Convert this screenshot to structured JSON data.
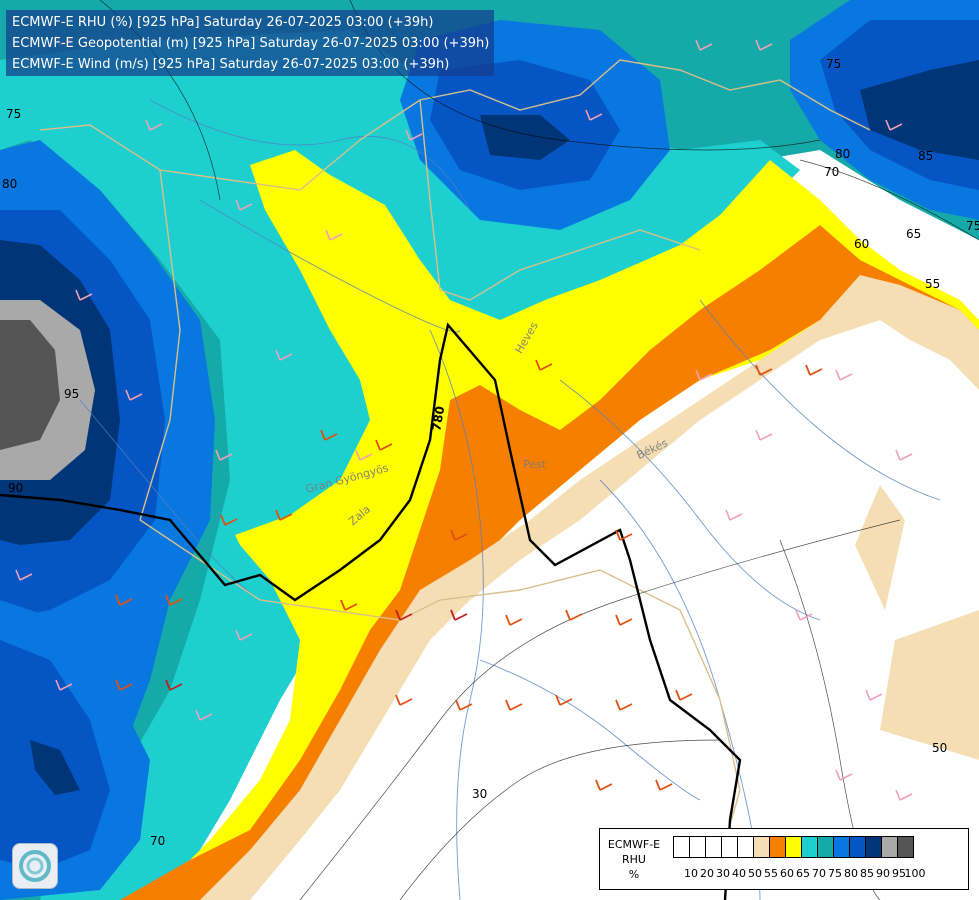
{
  "header": {
    "line1": "ECMWF-E RHU (%) [925 hPa] Saturday 26-07-2025 03:00 (+39h)",
    "line2": "ECMWF-E Geopotential (m) [925 hPa] Saturday 26-07-2025 03:00 (+39h)",
    "line3": "ECMWF-E Wind (m/s) [925 hPa] Saturday 26-07-2025 03:00 (+39h)"
  },
  "map_labels": {
    "geopotential_contour": "780",
    "contours": [
      "80",
      "95",
      "90",
      "70",
      "75",
      "75",
      "80",
      "85",
      "70",
      "65",
      "60",
      "55",
      "50",
      "30",
      "75"
    ],
    "places": [
      "Heves",
      "Pest",
      "Békés",
      "Gran Gyöngyös",
      "Zala"
    ]
  },
  "legend": {
    "title_line1": "ECMWF-E",
    "title_line2": "RHU",
    "title_line3": "%",
    "ticks": [
      "10",
      "20",
      "30",
      "40",
      "50",
      "55",
      "60",
      "65",
      "70",
      "75",
      "80",
      "85",
      "90",
      "95",
      "100"
    ],
    "colors": [
      "#ffffff",
      "#ffffff",
      "#ffffff",
      "#ffffff",
      "#ffffff",
      "#f5deb3",
      "#f77f00",
      "#ffff00",
      "#1ecfd0",
      "#16a9a9",
      "#0878e0",
      "#0556c4",
      "#003577",
      "#a9a9a9",
      "#555555"
    ]
  },
  "colors": {
    "wind_barb_light": "#f0a0b8",
    "wind_barb_strong": "#e05010",
    "wind_barb_max": "#c02020",
    "border": "#d8c08a",
    "river": "#5080c0"
  }
}
